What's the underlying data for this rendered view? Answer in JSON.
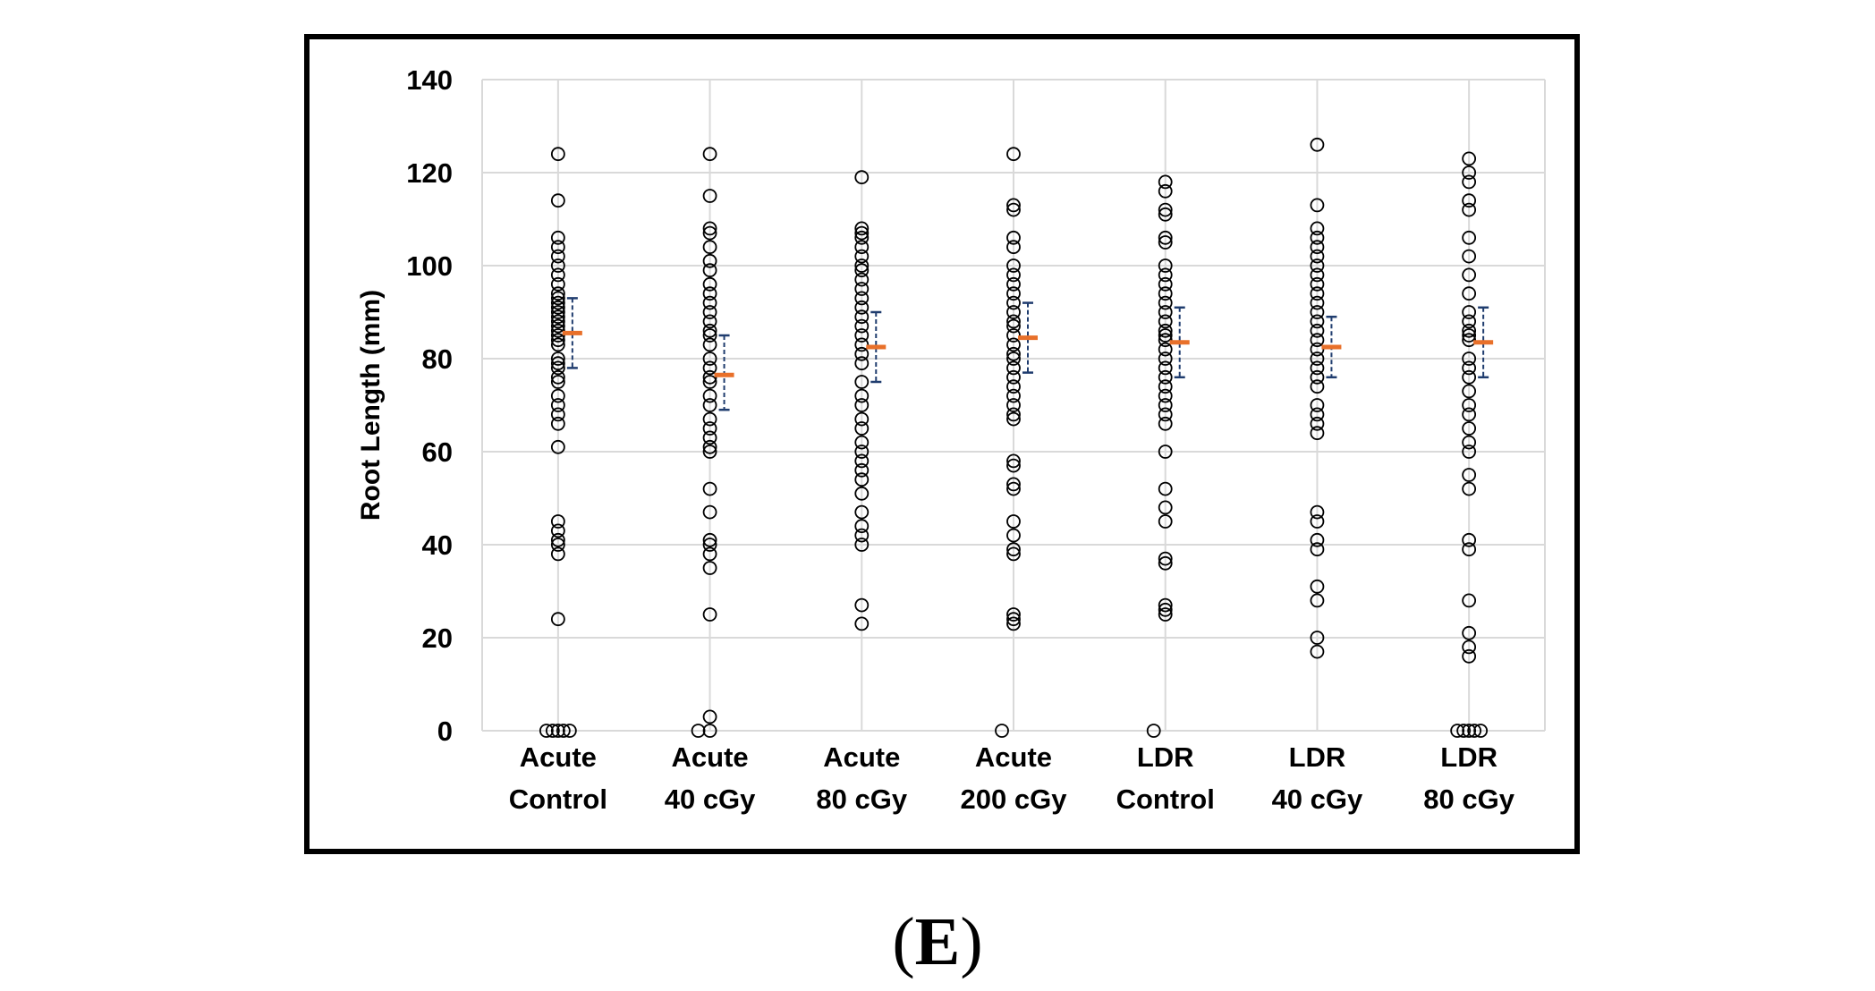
{
  "panel_label": "(E)",
  "panel_label_text": "E",
  "chart_data": {
    "type": "scatter",
    "title": "",
    "xlabel": "",
    "ylabel": "Root Length (mm)",
    "ylim": [
      0,
      140
    ],
    "yticks": [
      0,
      20,
      40,
      60,
      80,
      100,
      120,
      140
    ],
    "grid": true,
    "legend": "none",
    "colors": {
      "points": "#000000",
      "mean": "#e8702a",
      "error_bar": "#1f3c6e",
      "grid": "#d9d9d9"
    },
    "categories": [
      [
        "Acute",
        "Control"
      ],
      [
        "Acute",
        "40 cGy"
      ],
      [
        "Acute",
        "80 cGy"
      ],
      [
        "Acute",
        "200 cGy"
      ],
      [
        "LDR",
        "Control"
      ],
      [
        "LDR",
        "40 cGy"
      ],
      [
        "LDR",
        "80 cGy"
      ]
    ],
    "groups": [
      {
        "points": [
          124,
          114,
          106,
          104,
          102,
          100,
          98,
          96,
          94,
          93,
          92,
          91,
          90,
          89,
          88,
          87,
          86,
          85,
          84,
          83,
          80,
          79,
          78,
          76,
          75,
          72,
          70,
          68,
          66,
          61,
          45,
          43,
          41,
          40,
          38,
          24,
          0,
          0,
          0,
          0,
          0
        ],
        "mean": 85.5,
        "err_low": 78,
        "err_high": 93
      },
      {
        "points": [
          124,
          115,
          108,
          107,
          104,
          101,
          99,
          96,
          94,
          92,
          90,
          88,
          86,
          85,
          83,
          80,
          78,
          76,
          75,
          72,
          70,
          67,
          65,
          63,
          61,
          60,
          52,
          47,
          41,
          40,
          38,
          35,
          25,
          3,
          0,
          0
        ],
        "mean": 76.5,
        "err_low": 69,
        "err_high": 85
      },
      {
        "points": [
          119,
          108,
          107,
          106,
          104,
          102,
          100,
          99,
          97,
          95,
          93,
          91,
          89,
          87,
          85,
          83,
          81,
          79,
          75,
          72,
          70,
          67,
          65,
          62,
          60,
          58,
          56,
          54,
          51,
          47,
          44,
          42,
          40,
          27,
          23
        ],
        "mean": 82.5,
        "err_low": 75,
        "err_high": 90
      },
      {
        "points": [
          124,
          113,
          112,
          106,
          104,
          100,
          98,
          96,
          94,
          92,
          90,
          88,
          87,
          85,
          83,
          81,
          80,
          78,
          76,
          74,
          72,
          70,
          68,
          67,
          58,
          57,
          53,
          52,
          45,
          42,
          39,
          38,
          25,
          24,
          23,
          0
        ],
        "mean": 84.5,
        "err_low": 77,
        "err_high": 92
      },
      {
        "points": [
          118,
          116,
          112,
          111,
          106,
          105,
          100,
          98,
          96,
          94,
          92,
          90,
          88,
          86,
          85,
          84,
          82,
          80,
          78,
          76,
          74,
          72,
          70,
          68,
          66,
          60,
          52,
          48,
          45,
          37,
          36,
          27,
          26,
          25,
          0
        ],
        "mean": 83.5,
        "err_low": 76,
        "err_high": 91
      },
      {
        "points": [
          126,
          113,
          108,
          106,
          104,
          102,
          100,
          98,
          96,
          94,
          92,
          90,
          88,
          86,
          84,
          82,
          80,
          78,
          76,
          74,
          70,
          68,
          66,
          64,
          47,
          45,
          41,
          39,
          31,
          28,
          20,
          17
        ],
        "mean": 82.5,
        "err_low": 76,
        "err_high": 89
      },
      {
        "points": [
          123,
          120,
          118,
          114,
          112,
          106,
          102,
          98,
          94,
          90,
          88,
          86,
          85,
          84,
          80,
          78,
          76,
          73,
          70,
          68,
          65,
          62,
          60,
          55,
          52,
          41,
          39,
          28,
          21,
          18,
          16,
          0,
          0,
          0,
          0,
          0
        ],
        "mean": 83.5,
        "err_low": 76,
        "err_high": 91
      }
    ]
  }
}
